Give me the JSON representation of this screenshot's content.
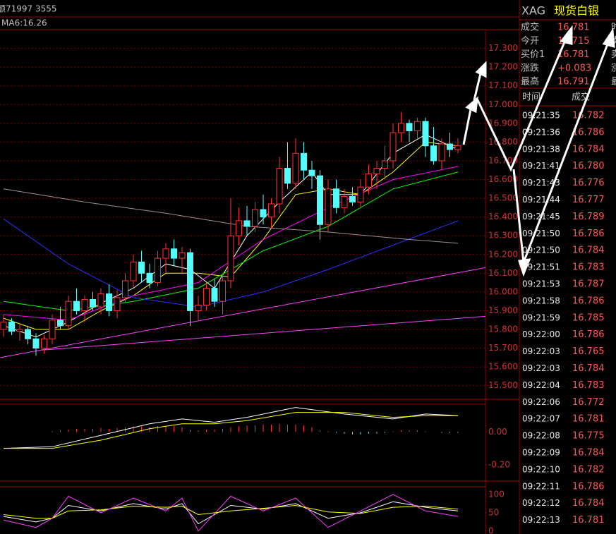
{
  "header": {
    "volume_text": "额71997 3555",
    "ma_text": "MA6:16.26"
  },
  "quote": {
    "symbol": "XAG",
    "name": "现货白银",
    "rows": [
      {
        "label": "成交",
        "value": "16.781",
        "side": "时"
      },
      {
        "label": "今开",
        "value": "16.715",
        "side": "卖"
      },
      {
        "label": "买价1",
        "value": "16.781",
        "side": "卖"
      },
      {
        "label": "涨跌",
        "value": "+0.083",
        "side": "涨"
      },
      {
        "label": "最高",
        "value": "16.791",
        "side": "最"
      }
    ]
  },
  "trades": {
    "headers": [
      "时间",
      "成交"
    ],
    "rows": [
      [
        "09:21:35",
        "16.782"
      ],
      [
        "09:21:36",
        "16.786"
      ],
      [
        "09:21:38",
        "16.784"
      ],
      [
        "09:21:41",
        "16.780"
      ],
      [
        "09:21:43",
        "16.776"
      ],
      [
        "09:21:44",
        "16.777"
      ],
      [
        "09:21:45",
        "16.789"
      ],
      [
        "09:21:50",
        "16.786"
      ],
      [
        "09:21:50",
        "16.784"
      ],
      [
        "09:21:51",
        "16.783"
      ],
      [
        "09:21:53",
        "16.787"
      ],
      [
        "09:21:58",
        "16.786"
      ],
      [
        "09:21:59",
        "16.785"
      ],
      [
        "09:22:00",
        "16.786"
      ],
      [
        "09:22:03",
        "16.765"
      ],
      [
        "09:22:03",
        "16.784"
      ],
      [
        "09:22:04",
        "16.783"
      ],
      [
        "09:22:06",
        "16.772"
      ],
      [
        "09:22:07",
        "16.781"
      ],
      [
        "09:22:08",
        "16.775"
      ],
      [
        "09:22:09",
        "16.784"
      ],
      [
        "09:22:10",
        "16.782"
      ],
      [
        "09:22:11",
        "16.786"
      ],
      [
        "09:22:12",
        "16.784"
      ],
      [
        "09:22:13",
        "16.781"
      ]
    ]
  },
  "chart_data": [
    {
      "type": "candlestick",
      "up_color": "#ff3232",
      "down_color": "#54fcfc",
      "open": [
        15.8,
        15.84,
        15.79,
        15.8,
        15.75,
        15.7,
        15.75,
        15.85,
        15.82,
        15.95,
        15.9,
        15.96,
        15.92,
        15.99,
        15.9,
        15.97,
        16.06,
        16.16,
        16.1,
        16.05,
        16.18,
        16.23,
        16.18,
        16.21,
        15.9,
        15.93,
        16.02,
        15.95,
        16.06,
        16.3,
        16.38,
        16.35,
        16.44,
        16.4,
        16.47,
        16.66,
        16.58,
        16.74,
        16.65,
        16.62,
        16.36,
        16.55,
        16.45,
        16.51,
        16.48,
        16.56,
        16.63,
        16.66,
        16.7,
        16.85,
        16.9,
        16.86,
        16.91,
        16.78,
        16.7,
        16.79,
        16.76
      ],
      "high": [
        15.88,
        15.86,
        15.83,
        15.82,
        15.78,
        15.77,
        15.88,
        15.92,
        15.98,
        16.02,
        15.98,
        16.0,
        16.02,
        16.04,
        16.01,
        16.1,
        16.2,
        16.22,
        16.15,
        16.22,
        16.26,
        16.28,
        16.24,
        16.23,
        15.98,
        16.05,
        16.07,
        16.1,
        16.5,
        16.45,
        16.46,
        16.48,
        16.52,
        16.5,
        16.72,
        16.8,
        16.82,
        16.8,
        16.7,
        16.65,
        16.6,
        16.6,
        16.55,
        16.56,
        16.6,
        16.68,
        16.7,
        16.78,
        16.9,
        16.96,
        16.92,
        16.93,
        16.93,
        16.88,
        16.82,
        16.85,
        16.82
      ],
      "low": [
        15.76,
        15.77,
        15.74,
        15.72,
        15.66,
        15.67,
        15.72,
        15.8,
        15.8,
        15.88,
        15.84,
        15.9,
        15.88,
        15.87,
        15.86,
        15.94,
        16.02,
        16.05,
        16.02,
        16.03,
        16.1,
        16.14,
        16.1,
        15.82,
        15.85,
        15.9,
        15.92,
        15.88,
        16.02,
        16.25,
        16.3,
        16.32,
        16.36,
        16.34,
        16.42,
        16.55,
        16.55,
        16.6,
        16.55,
        16.28,
        16.32,
        16.42,
        16.42,
        16.46,
        16.45,
        16.52,
        16.55,
        16.6,
        16.66,
        16.8,
        16.8,
        16.82,
        16.72,
        16.68,
        16.65,
        16.72,
        16.74
      ],
      "close": [
        15.84,
        15.79,
        15.8,
        15.75,
        15.7,
        15.75,
        15.85,
        15.82,
        15.95,
        15.9,
        15.96,
        15.92,
        15.99,
        15.9,
        15.97,
        16.06,
        16.16,
        16.1,
        16.05,
        16.18,
        16.23,
        16.18,
        16.21,
        15.9,
        15.93,
        16.02,
        15.95,
        16.06,
        16.3,
        16.38,
        16.35,
        16.44,
        16.4,
        16.47,
        16.66,
        16.58,
        16.74,
        16.65,
        16.62,
        16.36,
        16.55,
        16.45,
        16.51,
        16.48,
        16.56,
        16.63,
        16.66,
        16.7,
        16.85,
        16.9,
        16.86,
        16.91,
        16.78,
        16.7,
        16.79,
        16.76,
        16.78
      ],
      "series": [
        {
          "name": "MA5",
          "color": "#ffffff",
          "x": [
            0,
            4,
            8,
            12,
            16,
            20,
            23,
            26,
            30,
            34,
            38,
            40,
            44,
            48,
            52,
            56
          ],
          "values": [
            15.82,
            15.76,
            15.84,
            15.94,
            16.02,
            16.15,
            16.12,
            16.02,
            16.3,
            16.48,
            16.64,
            16.52,
            16.52,
            16.74,
            16.84,
            16.76
          ]
        },
        {
          "name": "MA10",
          "color": "#ffff00",
          "x": [
            0,
            4,
            8,
            12,
            16,
            20,
            24,
            28,
            32,
            36,
            40,
            44,
            48,
            52,
            56
          ],
          "values": [
            15.86,
            15.8,
            15.8,
            15.9,
            15.98,
            16.1,
            16.1,
            16.08,
            16.28,
            16.52,
            16.55,
            16.52,
            16.64,
            16.8,
            16.78
          ]
        },
        {
          "name": "MA20",
          "color": "#ff00ff",
          "x": [
            0,
            8,
            16,
            24,
            32,
            40,
            48,
            56
          ],
          "values": [
            15.88,
            15.85,
            15.98,
            16.05,
            16.28,
            16.45,
            16.6,
            16.67
          ]
        },
        {
          "name": "MA30",
          "color": "#00ff00",
          "x": [
            0,
            8,
            16,
            24,
            32,
            40,
            48,
            56
          ],
          "values": [
            15.95,
            15.9,
            15.95,
            16.02,
            16.22,
            16.35,
            16.55,
            16.64
          ]
        },
        {
          "name": "MA60",
          "color": "#3030ff",
          "x": [
            0,
            8,
            16,
            24,
            32,
            40,
            48,
            56
          ],
          "values": [
            16.39,
            16.15,
            15.97,
            15.92,
            16.0,
            16.12,
            16.25,
            16.38
          ]
        },
        {
          "name": "MA120",
          "color": "#a09090",
          "x": [
            0,
            10,
            20,
            30,
            40,
            50,
            56
          ],
          "values": [
            16.55,
            16.48,
            16.42,
            16.35,
            16.32,
            16.28,
            16.26
          ]
        },
        {
          "name": "trend1",
          "color": "#ff40ff",
          "x": [
            -0.4,
            59.4
          ],
          "values": [
            15.65,
            16.13
          ]
        },
        {
          "name": "trend2",
          "color": "#ff40ff",
          "x": [
            4.8,
            59.4
          ],
          "values": [
            15.69,
            15.87
          ]
        }
      ],
      "ylim": [
        15.45,
        17.4
      ],
      "yticks": [
        {
          "value": 17.3,
          "label": "17.300"
        },
        {
          "value": 17.2,
          "label": "17.200"
        },
        {
          "value": 17.1,
          "label": "17.100"
        },
        {
          "value": 17.0,
          "label": "17.000"
        },
        {
          "value": 16.9,
          "label": "16.900"
        },
        {
          "value": 16.8,
          "label": "16.800"
        },
        {
          "value": 16.7,
          "label": "16.700"
        },
        {
          "value": 16.6,
          "label": "16.600"
        },
        {
          "value": 16.5,
          "label": "16.500"
        },
        {
          "value": 16.4,
          "label": "16.400"
        },
        {
          "value": 16.3,
          "label": "16.300"
        },
        {
          "value": 16.2,
          "label": "16.200"
        },
        {
          "value": 16.1,
          "label": "16.100"
        },
        {
          "value": 16.0,
          "label": "16.000"
        },
        {
          "value": 15.9,
          "label": "15.900"
        },
        {
          "value": 15.8,
          "label": "15.800"
        },
        {
          "value": 15.7,
          "label": "15.700"
        },
        {
          "value": 15.6,
          "label": "15.600"
        },
        {
          "value": 15.5,
          "label": "15.500"
        }
      ],
      "grid": true
    },
    {
      "type": "macd",
      "up_color": "#ff3232",
      "down_color": "#54fcfc",
      "values": [
        0,
        0,
        0,
        0,
        0,
        0,
        0.005,
        0.01,
        0.015,
        0.02,
        0.02,
        0.02,
        0.025,
        0.02,
        0.025,
        0.03,
        0.035,
        0.035,
        0.03,
        0.035,
        0.04,
        0.035,
        0.03,
        0.015,
        0.01,
        0.015,
        0.015,
        0.02,
        0.03,
        0.035,
        0.04,
        0.04,
        0.045,
        0.045,
        0.05,
        0.045,
        0.045,
        0.04,
        0.03,
        0.01,
        0.005,
        -0.005,
        -0.01,
        -0.015,
        -0.015,
        -0.01,
        -0.01,
        -0.005,
        0.005,
        0.01,
        0.01,
        0.01,
        0.005,
        0,
        -0.005,
        -0.005,
        -0.005
      ],
      "series": [
        {
          "name": "DIF",
          "color": "#ffffff",
          "x": [
            0,
            6,
            12,
            18,
            22,
            26,
            30,
            36,
            42,
            48,
            52,
            56
          ],
          "values": [
            -0.1,
            -0.09,
            -0.02,
            0.05,
            0.08,
            0.06,
            0.09,
            0.15,
            0.11,
            0.08,
            0.11,
            0.1
          ]
        },
        {
          "name": "DEA",
          "color": "#ffff00",
          "x": [
            0,
            6,
            12,
            18,
            22,
            26,
            30,
            36,
            42,
            48,
            52,
            56
          ],
          "values": [
            -0.1,
            -0.1,
            -0.05,
            0.02,
            0.05,
            0.05,
            0.07,
            0.12,
            0.12,
            0.09,
            0.1,
            0.1
          ]
        }
      ],
      "ylim": [
        -0.3,
        0.17
      ],
      "yticks": [
        {
          "value": 0,
          "label": "0.00"
        },
        {
          "value": -0.2,
          "label": "-0.20"
        }
      ]
    },
    {
      "type": "kdj",
      "series": [
        {
          "name": "K",
          "color": "#ffffff",
          "x": [
            0,
            4,
            6,
            8,
            12,
            16,
            20,
            22,
            24,
            28,
            32,
            36,
            40,
            44,
            48,
            52,
            56
          ],
          "values": [
            40,
            25,
            35,
            70,
            55,
            75,
            60,
            75,
            20,
            70,
            60,
            75,
            35,
            50,
            80,
            65,
            55
          ]
        },
        {
          "name": "D",
          "color": "#ffff00",
          "x": [
            0,
            4,
            6,
            8,
            12,
            16,
            20,
            22,
            24,
            28,
            32,
            36,
            40,
            44,
            48,
            52,
            56
          ],
          "values": [
            45,
            35,
            35,
            55,
            58,
            68,
            65,
            68,
            45,
            55,
            62,
            70,
            52,
            48,
            65,
            68,
            60
          ]
        },
        {
          "name": "J",
          "color": "#ff40ff",
          "x": [
            0,
            4,
            6,
            8,
            12,
            16,
            20,
            22,
            24,
            28,
            32,
            36,
            40,
            44,
            48,
            52,
            56
          ],
          "values": [
            30,
            10,
            35,
            95,
            50,
            90,
            55,
            90,
            0,
            95,
            55,
            90,
            10,
            55,
            100,
            55,
            40
          ]
        }
      ],
      "ylim": [
        -8,
        121
      ],
      "yticks": [
        100,
        50,
        0
      ]
    }
  ]
}
